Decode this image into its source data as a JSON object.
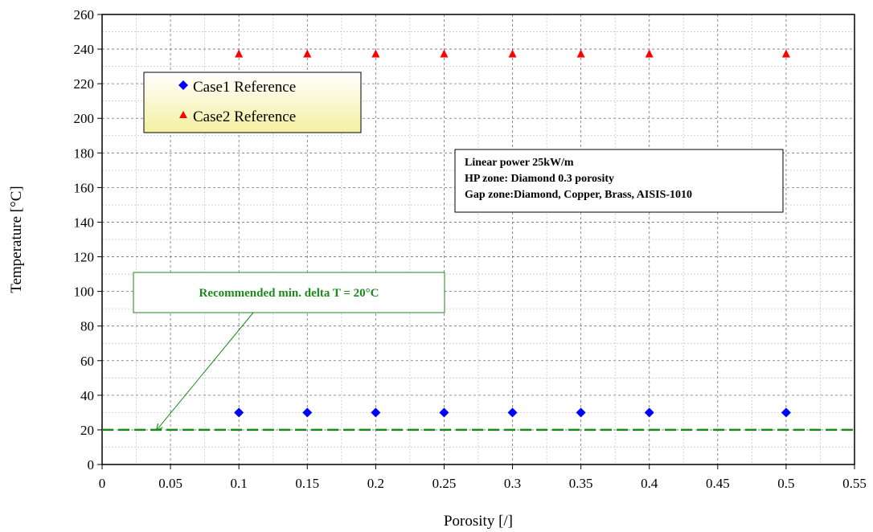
{
  "chart_data": {
    "type": "scatter",
    "xlabel": "Porosity [/]",
    "ylabel": "Temperature [°C]",
    "xlim": [
      0,
      0.55
    ],
    "ylim": [
      0,
      260
    ],
    "x_ticks": [
      "0",
      "0.05",
      "0.1",
      "0.15",
      "0.2",
      "0.25",
      "0.3",
      "0.35",
      "0.4",
      "0.45",
      "0.5",
      "0.55"
    ],
    "y_ticks": [
      "0",
      "20",
      "40",
      "60",
      "80",
      "100",
      "120",
      "140",
      "160",
      "180",
      "200",
      "220",
      "240",
      "260"
    ],
    "grid": true,
    "legend_position": "top-left",
    "series": [
      {
        "name": "Case1 Reference",
        "marker": "diamond",
        "color": "#0000ff",
        "x": [
          0.1,
          0.15,
          0.2,
          0.25,
          0.3,
          0.35,
          0.4,
          0.5
        ],
        "y": [
          30,
          30,
          30,
          30,
          30,
          30,
          30,
          30
        ]
      },
      {
        "name": "Case2 Reference",
        "marker": "triangle",
        "color": "#ff0000",
        "x": [
          0.1,
          0.15,
          0.2,
          0.25,
          0.3,
          0.35,
          0.4,
          0.5
        ],
        "y": [
          237,
          237,
          237,
          237,
          237,
          237,
          237,
          237
        ]
      }
    ],
    "reference_line": {
      "y": 20,
      "color": "#1a8a1a",
      "style": "dashed"
    },
    "annotations": {
      "recommended": {
        "text": "Recommended min. delta T = 20°C",
        "arrow_target": {
          "x": 0.04,
          "y": 20
        }
      },
      "info_lines": [
        "Linear power 25kW/m",
        "HP zone:  Diamond 0.3 porosity",
        "Gap zone:Diamond, Copper, Brass, AISIS-1010"
      ]
    }
  }
}
